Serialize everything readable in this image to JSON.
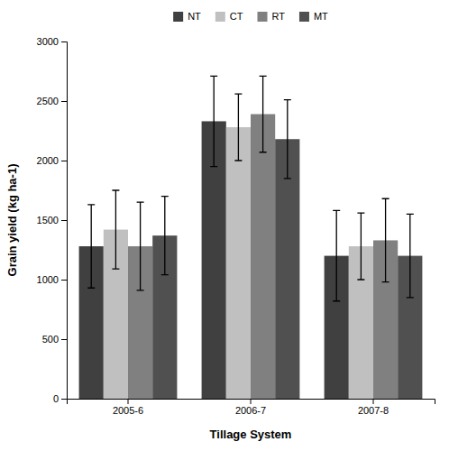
{
  "chart_data": {
    "type": "bar",
    "categories": [
      "2005-6",
      "2006-7",
      "2007-8"
    ],
    "series": [
      {
        "name": "NT",
        "color": "#404040",
        "values": [
          1280,
          2330,
          1200
        ],
        "errors": [
          350,
          380,
          380
        ]
      },
      {
        "name": "CT",
        "color": "#c0c0c0",
        "values": [
          1420,
          2280,
          1280
        ],
        "errors": [
          330,
          280,
          280
        ]
      },
      {
        "name": "RT",
        "color": "#808080",
        "values": [
          1280,
          2390,
          1330
        ],
        "errors": [
          370,
          320,
          350
        ]
      },
      {
        "name": "MT",
        "color": "#505050",
        "values": [
          1370,
          2180,
          1200
        ],
        "errors": [
          330,
          330,
          350
        ]
      }
    ],
    "xlabel": "Tillage System",
    "ylabel": "Grain yield (kg ha-1)",
    "ylim": [
      0,
      3000
    ],
    "yticks": [
      0,
      500,
      1000,
      1500,
      2000,
      2500,
      3000
    ],
    "grid": false,
    "legend": "top"
  }
}
